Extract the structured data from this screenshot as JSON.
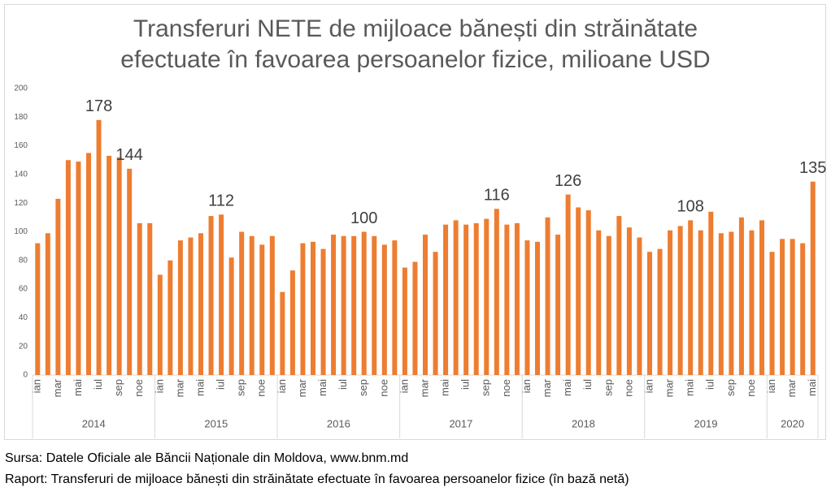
{
  "chart_data": {
    "type": "bar",
    "title": [
      "Transferuri NETE de mijloace bănești din străinătate",
      "efectuate în favoarea persoanelor fizice, milioane USD"
    ],
    "categories": [
      "ian",
      null,
      "mar",
      null,
      "mai",
      null,
      "iul",
      null,
      "sep",
      null,
      "noe",
      null,
      "ian",
      null,
      "mar",
      null,
      "mai",
      null,
      "iul",
      null,
      "sep",
      null,
      "noe",
      null,
      "ian",
      null,
      "mar",
      null,
      "mai",
      null,
      "iul",
      null,
      "sep",
      null,
      "noe",
      null,
      "ian",
      null,
      "mar",
      null,
      "mai",
      null,
      "iul",
      null,
      "sep",
      null,
      "noe",
      null,
      "ian",
      null,
      "mar",
      null,
      "mai",
      null,
      "iul",
      null,
      "sep",
      null,
      "noe",
      null,
      "ian",
      null,
      "mar",
      null,
      "mai",
      null,
      "iul",
      null,
      "sep",
      null,
      "noe",
      null,
      "ian",
      null,
      "mar",
      null,
      "mai"
    ],
    "groups": [
      "2014",
      "2015",
      "2016",
      "2017",
      "2018",
      "2019",
      "2020"
    ],
    "values": [
      92,
      99,
      123,
      150,
      149,
      155,
      178,
      153,
      152,
      144,
      106,
      106,
      70,
      80,
      94,
      96,
      99,
      111,
      112,
      82,
      100,
      97,
      91,
      97,
      58,
      73,
      92,
      93,
      88,
      98,
      97,
      97,
      100,
      97,
      91,
      94,
      75,
      79,
      98,
      86,
      105,
      108,
      105,
      106,
      109,
      116,
      105,
      106,
      94,
      93,
      110,
      98,
      126,
      117,
      115,
      101,
      97,
      111,
      103,
      96,
      86,
      88,
      101,
      104,
      108,
      101,
      114,
      99,
      100,
      110,
      101,
      108,
      86,
      95,
      95,
      92,
      135
    ],
    "value_labels": [
      null,
      null,
      null,
      null,
      null,
      null,
      "178",
      null,
      null,
      "144",
      null,
      null,
      null,
      null,
      null,
      null,
      null,
      null,
      "112",
      null,
      null,
      null,
      null,
      null,
      null,
      null,
      null,
      null,
      null,
      null,
      null,
      null,
      "100",
      null,
      null,
      null,
      null,
      null,
      null,
      null,
      null,
      null,
      null,
      null,
      null,
      "116",
      null,
      null,
      null,
      null,
      null,
      null,
      "126",
      null,
      null,
      null,
      null,
      null,
      null,
      null,
      null,
      null,
      null,
      null,
      "108",
      null,
      null,
      null,
      null,
      null,
      null,
      null,
      null,
      null,
      null,
      null,
      "135"
    ],
    "color": "#ED7D31",
    "ylim": [
      0,
      200
    ],
    "yticks": [
      0,
      20,
      40,
      60,
      80,
      100,
      120,
      140,
      160,
      180,
      200
    ],
    "grid": false
  },
  "footer": [
    "Sursa: Datele Oficiale ale Băncii Naționale din Moldova, www.bnm.md",
    "Raport: Transferuri de mijloace bănești din străinătate efectuate în favoarea persoanelor fizice (în bază netă)"
  ]
}
